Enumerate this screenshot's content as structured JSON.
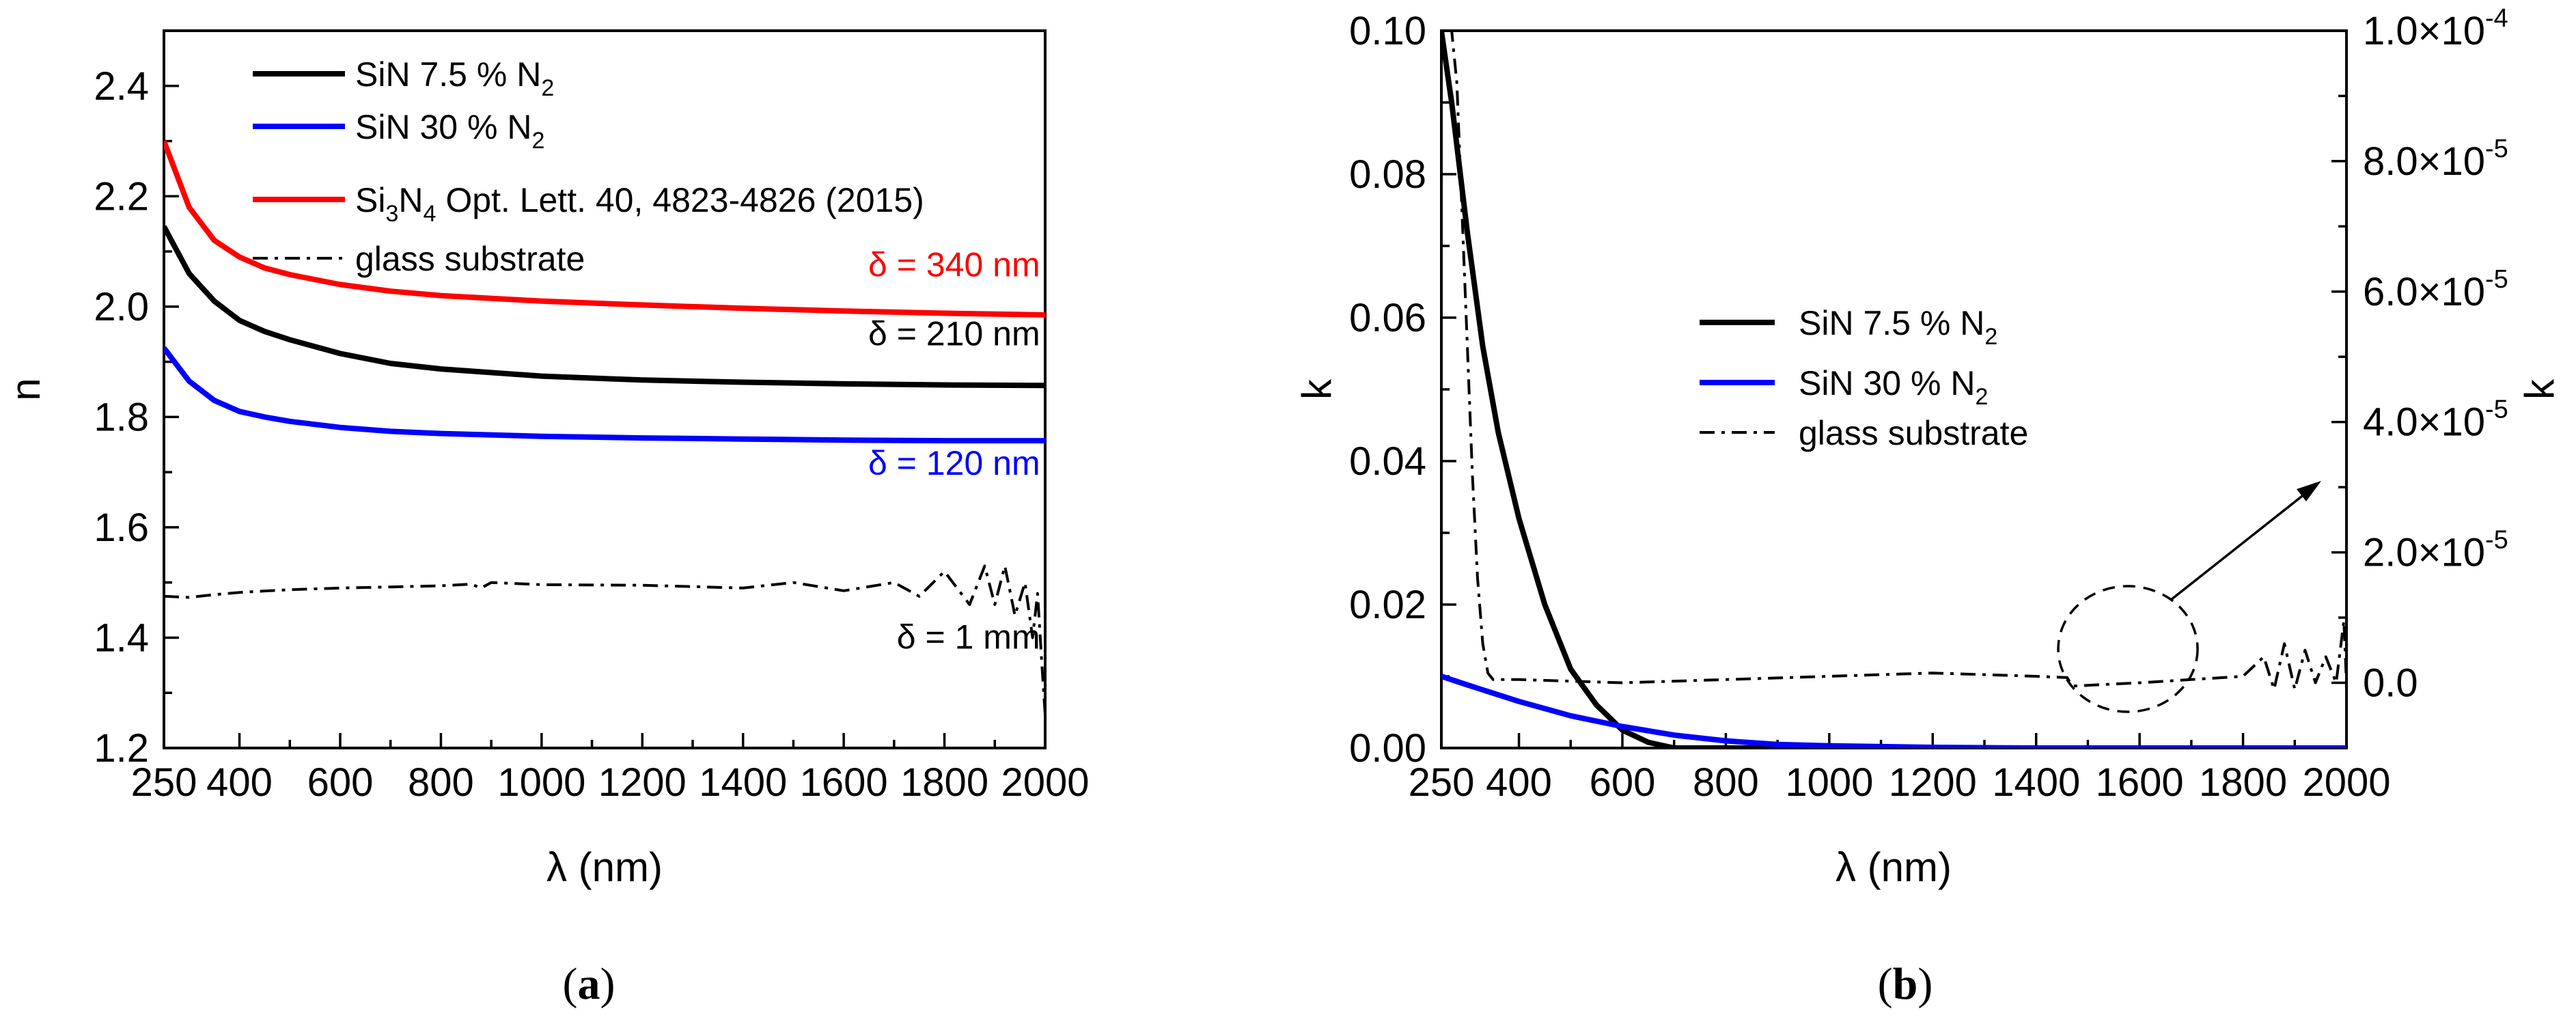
{
  "chart_data": [
    {
      "id": "a",
      "type": "line",
      "caption_open": "(",
      "caption": "a",
      "caption_close": ")",
      "xlabel_sym": "λ",
      "xlabel_unit": " (nm)",
      "ylabel": "n",
      "xlim": [
        250,
        2000
      ],
      "ylim": [
        1.2,
        2.5
      ],
      "xticks": [
        250,
        400,
        600,
        800,
        1000,
        1200,
        1400,
        1600,
        1800,
        2000
      ],
      "xtick_labels": [
        "250",
        "400",
        "600",
        "800",
        "1000",
        "1200",
        "1400",
        "1600",
        "1800",
        "2000"
      ],
      "yticks": [
        1.2,
        1.4,
        1.6,
        1.8,
        2.0,
        2.2,
        2.4
      ],
      "ytick_labels": [
        "1.2",
        "1.4",
        "1.6",
        "1.8",
        "2.0",
        "2.2",
        "2.4"
      ],
      "series": [
        {
          "name": "SiN 7.5 % N2",
          "label_main": "SiN 7.5 % N",
          "label_sub": "2",
          "label_tail": "",
          "color": "#000000",
          "style": "solid",
          "x": [
            250,
            300,
            350,
            400,
            450,
            500,
            600,
            700,
            800,
            1000,
            1200,
            1400,
            1600,
            1800,
            2000
          ],
          "y": [
            2.145,
            2.06,
            2.01,
            1.975,
            1.955,
            1.94,
            1.915,
            1.897,
            1.887,
            1.874,
            1.867,
            1.863,
            1.86,
            1.858,
            1.857
          ]
        },
        {
          "name": "SiN 30 % N2",
          "label_main": "SiN 30 % N",
          "label_sub": "2",
          "label_tail": "",
          "color": "#0000ff",
          "style": "solid",
          "x": [
            250,
            300,
            350,
            400,
            450,
            500,
            600,
            700,
            800,
            1000,
            1200,
            1400,
            1600,
            1800,
            2000
          ],
          "y": [
            1.925,
            1.865,
            1.83,
            1.81,
            1.8,
            1.792,
            1.781,
            1.774,
            1.77,
            1.765,
            1.762,
            1.76,
            1.758,
            1.757,
            1.757
          ]
        },
        {
          "name": "Si3N4 Opt. Lett. 40, 4823-4826 (2015)",
          "label_main": "Si",
          "label_sub": "3",
          "label_mid": "N",
          "label_sub2": "4",
          "label_tail": "  Opt. Lett. 40, 4823-4826 (2015)",
          "color": "#ff0000",
          "style": "solid",
          "x": [
            250,
            300,
            350,
            400,
            450,
            500,
            600,
            700,
            800,
            1000,
            1200,
            1400,
            1600,
            1800,
            2000
          ],
          "y": [
            2.3,
            2.18,
            2.12,
            2.09,
            2.07,
            2.058,
            2.04,
            2.028,
            2.02,
            2.01,
            2.003,
            1.997,
            1.992,
            1.988,
            1.985
          ]
        },
        {
          "name": "glass substrate",
          "label_main": "glass substrate",
          "color": "#000000",
          "style": "dashdot",
          "x": [
            250,
            300,
            350,
            400,
            500,
            600,
            700,
            800,
            860,
            880,
            900,
            1000,
            1200,
            1400,
            1500,
            1600,
            1700,
            1750,
            1800,
            1850,
            1880,
            1900,
            1920,
            1940,
            1960,
            1975,
            1985,
            1995,
            2000
          ],
          "y": [
            1.475,
            1.473,
            1.478,
            1.482,
            1.487,
            1.49,
            1.492,
            1.494,
            1.497,
            1.49,
            1.5,
            1.496,
            1.495,
            1.49,
            1.5,
            1.485,
            1.5,
            1.475,
            1.52,
            1.46,
            1.53,
            1.46,
            1.53,
            1.44,
            1.5,
            1.4,
            1.48,
            1.33,
            1.26
          ]
        }
      ],
      "annotations": [
        {
          "text": "δ = 340 nm",
          "color": "#ff0000",
          "x": 1990,
          "y": 2.055
        },
        {
          "text": "δ = 210 nm",
          "color": "#000000",
          "x": 1990,
          "y": 1.93
        },
        {
          "text": "δ = 120 nm",
          "color": "#0000ff",
          "x": 1990,
          "y": 1.695
        },
        {
          "text": "δ = 1 mm",
          "color": "#000000",
          "x": 1990,
          "y": 1.38
        }
      ],
      "legend_position": "top-left"
    },
    {
      "id": "b",
      "type": "line",
      "caption_open": "(",
      "caption": "b",
      "caption_close": ")",
      "xlabel_sym": "λ",
      "xlabel_unit": " (nm)",
      "ylabel": "k",
      "ylabel_right": "k",
      "xlim": [
        250,
        2000
      ],
      "ylim": [
        0.0,
        0.1
      ],
      "ylim_right": [
        -1e-05,
        0.0001
      ],
      "xticks": [
        250,
        400,
        600,
        800,
        1000,
        1200,
        1400,
        1600,
        1800,
        2000
      ],
      "xtick_labels": [
        "250",
        "400",
        "600",
        "800",
        "1000",
        "1200",
        "1400",
        "1600",
        "1800",
        "2000"
      ],
      "yticks": [
        0.0,
        0.02,
        0.04,
        0.06,
        0.08,
        0.1
      ],
      "ytick_labels": [
        "0.00",
        "0.02",
        "0.04",
        "0.06",
        "0.08",
        "0.10"
      ],
      "yticks_right": [
        0.0,
        2e-05,
        4e-05,
        6e-05,
        8e-05,
        0.0001
      ],
      "ytick_labels_right": [
        {
          "mant": "0.0",
          "exp": ""
        },
        {
          "mant": "2.0×10",
          "exp": "-5"
        },
        {
          "mant": "4.0×10",
          "exp": "-5"
        },
        {
          "mant": "6.0×10",
          "exp": "-5"
        },
        {
          "mant": "8.0×10",
          "exp": "-5"
        },
        {
          "mant": "1.0×10",
          "exp": "-4"
        }
      ],
      "series": [
        {
          "name": "SiN 7.5 % N2",
          "label_main": "SiN 7.5 % N",
          "label_sub": "2",
          "color": "#000000",
          "style": "solid",
          "axis": "left",
          "x": [
            250,
            270,
            300,
            330,
            360,
            400,
            450,
            500,
            550,
            600,
            650,
            700,
            800,
            1000,
            1500,
            2000
          ],
          "y": [
            0.1,
            0.09,
            0.072,
            0.056,
            0.044,
            0.032,
            0.02,
            0.011,
            0.006,
            0.0025,
            0.0008,
            0.0,
            0.0,
            0.0,
            0.0,
            0.0
          ]
        },
        {
          "name": "SiN 30 % N2",
          "label_main": "SiN 30 % N",
          "label_sub": "2",
          "color": "#0000ff",
          "style": "solid",
          "axis": "left",
          "x": [
            250,
            300,
            400,
            500,
            600,
            700,
            800,
            900,
            1000,
            1200,
            1400,
            2000
          ],
          "y": [
            0.01,
            0.0088,
            0.0065,
            0.0045,
            0.003,
            0.0018,
            0.001,
            0.0005,
            0.0003,
            0.0001,
            0.0,
            0.0
          ]
        },
        {
          "name": "glass substrate",
          "label_main": "glass substrate",
          "color": "#000000",
          "style": "dashdot",
          "axis": "right",
          "x": [
            262,
            270,
            280,
            290,
            300,
            310,
            320,
            330,
            340,
            350,
            400,
            600,
            800,
            1000,
            1200,
            1400,
            1460,
            1470,
            1600,
            1700,
            1800,
            1840,
            1860,
            1880,
            1900,
            1920,
            1940,
            1960,
            1980,
            1995,
            2000
          ],
          "y": [
            0.0001,
            0.0001,
            9.2e-05,
            7.2e-05,
            5.2e-05,
            3.2e-05,
            1.6e-05,
            6e-06,
            1.5e-06,
            5e-07,
            5e-07,
            0.0,
            5e-07,
            1e-06,
            1.5e-06,
            1e-06,
            8e-07,
            -5e-07,
            0.0,
            5e-07,
            1e-06,
            4e-06,
            -1e-06,
            6e-06,
            -1e-06,
            5e-06,
            0.0,
            4e-06,
            0.0,
            9.5e-06,
            0.0
          ]
        }
      ],
      "legend_position": "center",
      "annotation": {
        "type": "circle-with-arrow",
        "center_x": 1550,
        "center_y": 0.0095,
        "arrow_to_x": 1970,
        "arrow_to_y": 0.038
      }
    }
  ]
}
